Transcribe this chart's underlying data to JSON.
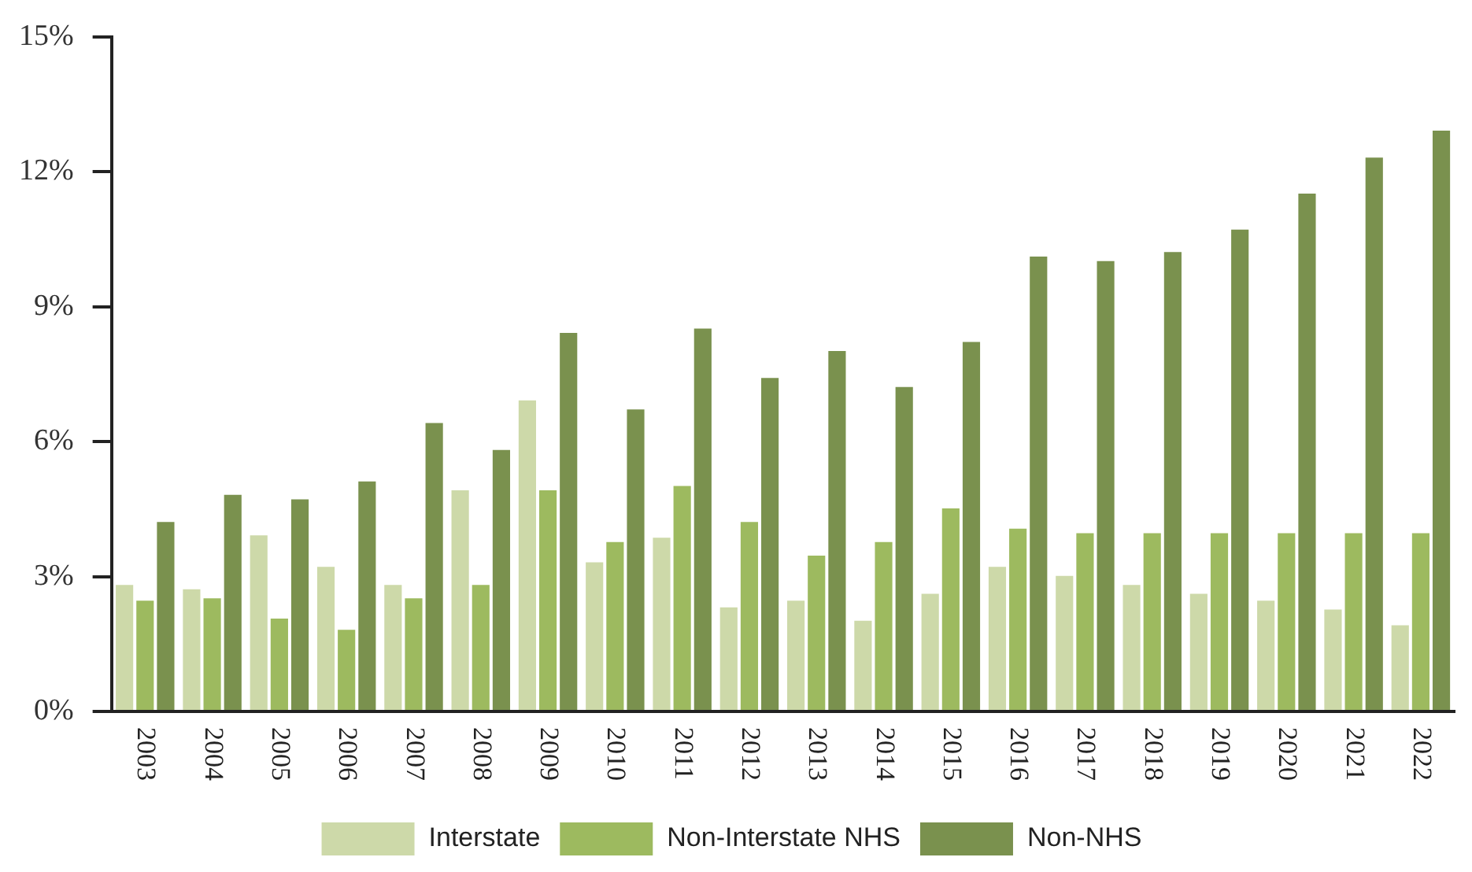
{
  "chart_data": {
    "type": "bar",
    "categories": [
      "2003",
      "2004",
      "2005",
      "2006",
      "2007",
      "2008",
      "2009",
      "2010",
      "2011",
      "2012",
      "2013",
      "2014",
      "2015",
      "2016",
      "2017",
      "2018",
      "2019",
      "2020",
      "2021",
      "2022"
    ],
    "series": [
      {
        "name": "Interstate",
        "color": "#cdd9a9",
        "values": [
          2.85,
          2.75,
          3.95,
          3.25,
          2.85,
          4.95,
          6.95,
          3.35,
          3.9,
          2.35,
          2.5,
          2.05,
          2.65,
          3.25,
          3.05,
          2.85,
          2.65,
          2.5,
          2.3,
          1.95
        ]
      },
      {
        "name": "Non-Interstate NHS",
        "color": "#9dba5f",
        "values": [
          2.5,
          2.55,
          2.1,
          1.85,
          2.55,
          2.85,
          4.95,
          3.8,
          5.05,
          4.25,
          3.5,
          3.8,
          4.55,
          4.1,
          4,
          4,
          4,
          4,
          4,
          4
        ]
      },
      {
        "name": "Non-NHS",
        "color": "#7a914e",
        "values": [
          4.25,
          4.85,
          4.75,
          5.15,
          6.45,
          5.85,
          8.45,
          6.75,
          8.55,
          7.45,
          8.05,
          7.25,
          8.25,
          10.15,
          10.05,
          10.25,
          10.75,
          11.55,
          12.35,
          12.95
        ]
      }
    ],
    "ylim": [
      0,
      15
    ],
    "yticks": [
      {
        "value": 0,
        "label": "0%"
      },
      {
        "value": 3,
        "label": "3%"
      },
      {
        "value": 6,
        "label": "6%"
      },
      {
        "value": 9,
        "label": "9%"
      },
      {
        "value": 12,
        "label": "12%"
      },
      {
        "value": 15,
        "label": "15%"
      }
    ],
    "grid": false,
    "legend": "bottom"
  }
}
